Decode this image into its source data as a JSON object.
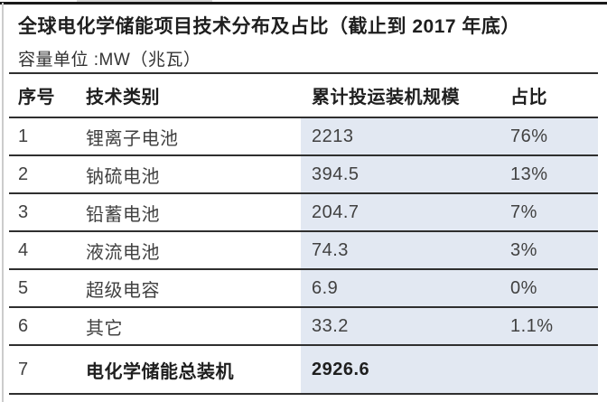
{
  "header": {
    "title": "全球电化学储能项目技术分布及占比（截止到 2017 年底）",
    "subtitle": "容量单位 :MW（兆瓦）"
  },
  "table": {
    "columns": [
      "序号",
      "技术类别",
      "累计投运装机规模",
      "占比"
    ],
    "rows": [
      {
        "seq": "1",
        "tech": "锂离子电池",
        "capacity": "2213",
        "share": "76%",
        "total": false
      },
      {
        "seq": "2",
        "tech": "钠硫电池",
        "capacity": "394.5",
        "share": "13%",
        "total": false
      },
      {
        "seq": "3",
        "tech": "铅蓄电池",
        "capacity": "204.7",
        "share": "7%",
        "total": false
      },
      {
        "seq": "4",
        "tech": "液流电池",
        "capacity": "74.3",
        "share": "3%",
        "total": false
      },
      {
        "seq": "5",
        "tech": "超级电容",
        "capacity": "6.9",
        "share": "0%",
        "total": false
      },
      {
        "seq": "6",
        "tech": "其它",
        "capacity": "33.2",
        "share": "1.1%",
        "total": false
      },
      {
        "seq": "7",
        "tech": "电化学储能总装机",
        "capacity": "2926.6",
        "share": "",
        "total": true
      }
    ]
  },
  "chart_data": {
    "type": "table",
    "title": "全球电化学储能项目技术分布及占比（截止到 2017 年底）",
    "unit": "MW（兆瓦）",
    "categories": [
      "锂离子电池",
      "钠硫电池",
      "铅蓄电池",
      "液流电池",
      "超级电容",
      "其它"
    ],
    "series": [
      {
        "name": "累计投运装机规模",
        "values": [
          2213,
          394.5,
          204.7,
          74.3,
          6.9,
          33.2
        ]
      },
      {
        "name": "占比",
        "values": [
          "76%",
          "13%",
          "7%",
          "3%",
          "0%",
          "1.1%"
        ]
      }
    ],
    "total_label": "电化学储能总装机",
    "total_value": 2926.6
  },
  "colors": {
    "highlight_cell": "#e2e8f2",
    "line": "#2f2f2f",
    "text": "#3a3a3a"
  }
}
